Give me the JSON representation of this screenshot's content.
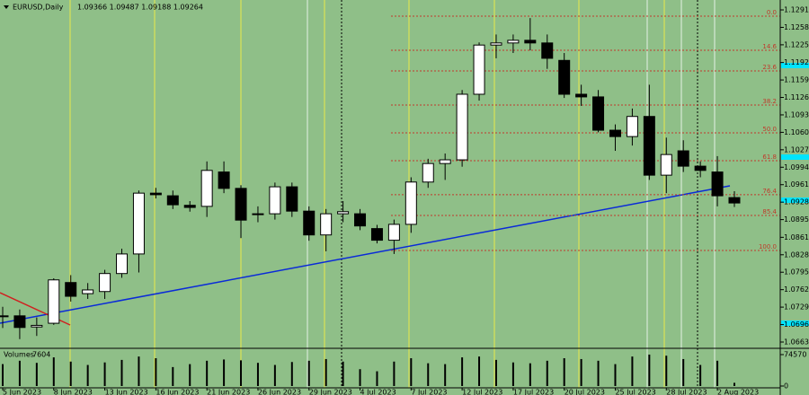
{
  "header": {
    "symbol": "EURUSD,Daily",
    "quote": "1.09366 1.09487 1.09188 1.09264"
  },
  "chart_data": {
    "type": "candlestick",
    "up_color": "#ffffff",
    "down_color": "#000000",
    "categories": [
      "5 Jun 2023",
      null,
      null,
      "8 Jun 2023",
      null,
      null,
      "13 Jun 2023",
      null,
      null,
      "16 Jun 2023",
      null,
      null,
      "21 Jun 2023",
      null,
      null,
      "26 Jun 2023",
      null,
      null,
      "29 Jun 2023",
      null,
      null,
      "4 Jul 2023",
      null,
      null,
      "7 Jul 2023",
      null,
      null,
      "12 Jul 2023",
      null,
      null,
      "17 Jul 2023",
      null,
      null,
      "20 Jul 2023",
      null,
      null,
      "25 Jul 2023",
      null,
      null,
      "28 Jul 2023",
      null,
      null,
      "2 Aug 2023",
      null
    ],
    "open": [
      1.0712,
      1.0713,
      1.0692,
      1.0699,
      1.0776,
      1.0755,
      1.0759,
      1.0793,
      1.083,
      1.0945,
      1.094,
      1.0922,
      1.092,
      1.0985,
      1.0954,
      1.0905,
      1.0906,
      1.0957,
      1.0911,
      1.0866,
      1.0906,
      1.0906,
      1.0878,
      1.0856,
      1.0886,
      1.0966,
      1.1001,
      1.1008,
      1.1132,
      1.1225,
      1.1229,
      1.1234,
      1.1229,
      1.1196,
      1.1132,
      1.1127,
      1.1064,
      1.1052,
      1.109,
      1.0979,
      1.1025,
      1.0996,
      1.0985,
      1.09366
    ],
    "high": [
      1.073,
      1.0725,
      1.071,
      1.0784,
      1.079,
      1.0775,
      1.08,
      1.084,
      1.095,
      1.0955,
      1.095,
      1.093,
      1.1005,
      1.1005,
      1.096,
      1.092,
      1.0965,
      1.0965,
      1.092,
      1.0915,
      1.093,
      1.0915,
      1.0885,
      1.0895,
      1.0975,
      1.101,
      1.102,
      1.114,
      1.123,
      1.1245,
      1.1245,
      1.1276,
      1.1245,
      1.121,
      1.115,
      1.114,
      1.1075,
      1.1105,
      1.115,
      1.105,
      1.1045,
      1.1005,
      1.1015,
      1.09487
    ],
    "low": [
      1.069,
      1.0669,
      1.0675,
      1.0696,
      1.074,
      1.0745,
      1.0745,
      1.0785,
      1.0795,
      1.0935,
      1.0915,
      1.091,
      1.09,
      1.0945,
      1.086,
      1.089,
      1.0895,
      1.09,
      1.0855,
      1.0835,
      1.089,
      1.0875,
      1.085,
      1.083,
      1.087,
      1.0955,
      1.097,
      1.0995,
      1.112,
      1.12,
      1.121,
      1.1215,
      1.118,
      1.1125,
      1.111,
      1.106,
      1.1025,
      1.1035,
      1.097,
      1.0945,
      1.0985,
      1.0975,
      1.092,
      1.09188
    ],
    "close": [
      1.0713,
      1.0691,
      1.0695,
      1.0781,
      1.075,
      1.0762,
      1.0793,
      1.083,
      1.0945,
      1.0942,
      1.0923,
      1.0918,
      1.0988,
      1.0954,
      1.0894,
      1.0906,
      1.0957,
      1.0911,
      1.0866,
      1.0906,
      1.091,
      1.0883,
      1.0856,
      1.0886,
      1.0966,
      1.1001,
      1.1008,
      1.1132,
      1.1225,
      1.1229,
      1.1234,
      1.1229,
      1.12,
      1.1132,
      1.1127,
      1.1064,
      1.1052,
      1.109,
      1.0979,
      1.1018,
      1.0996,
      1.0988,
      1.094,
      1.09264
    ],
    "ylim": [
      1.06516,
      1.13102
    ],
    "yticks": [
      1.12915,
      1.12585,
      1.12255,
      {
        "value": 1.1192,
        "label": "1.11920"
      },
      {
        "value": 1.1159,
        "label": "1.11590"
      },
      {
        "value": 1.1126,
        "label": "1.11260"
      },
      {
        "value": 1.1093,
        "label": "1.10930"
      },
      {
        "value": 1.106,
        "label": "1.10600"
      },
      {
        "value": 1.1027,
        "label": "1.10270"
      },
      {
        "value": 1.0994,
        "label": "1.09940"
      },
      {
        "value": 1.0961,
        "label": "1.09610"
      },
      {
        "value": 1.0928,
        "label": "1.09280"
      },
      {
        "value": 1.0895,
        "label": "1.08950"
      },
      1.08615,
      1.08285,
      1.07955,
      1.07625,
      1.07295,
      1.06965,
      1.06635
    ],
    "fib_levels": [
      {
        "label": "0.0",
        "price": 1.12797
      },
      {
        "label": "14.6",
        "price": 1.12152
      },
      {
        "label": "23.6",
        "price": 1.11761
      },
      {
        "label": "38.2",
        "price": 1.11117
      },
      {
        "label": "50.0",
        "price": 1.1059
      },
      {
        "label": "61.8",
        "price": 1.10064
      },
      {
        "label": "76.4",
        "price": 1.0942
      },
      {
        "label": "85.4",
        "price": 1.09029
      },
      {
        "label": "100.0",
        "price": 1.08367
      }
    ],
    "volume": {
      "title": "Volumes",
      "values": [
        52000,
        60000,
        55000,
        68000,
        58000,
        50000,
        56000,
        62000,
        70000,
        66000,
        45000,
        52000,
        60000,
        63000,
        61000,
        55000,
        50000,
        57000,
        60000,
        64000,
        58000,
        40000,
        35000,
        58000,
        66000,
        54000,
        52000,
        68000,
        70000,
        62000,
        56000,
        54000,
        60000,
        66000,
        64000,
        60000,
        52000,
        70000,
        74570,
        72000,
        64000,
        50000,
        60000,
        7604
      ],
      "ylim": [
        0,
        74570
      ],
      "yticks": [
        74570,
        0
      ]
    }
  }
}
